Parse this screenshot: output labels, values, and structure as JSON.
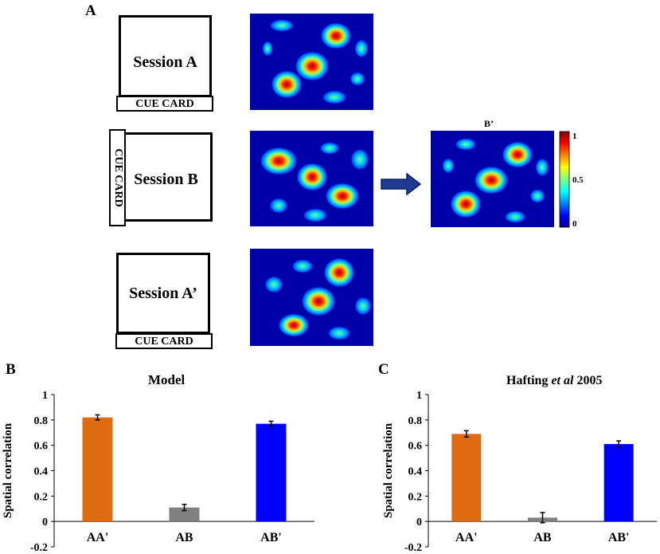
{
  "panel_a": {
    "letter": "A",
    "session_a_label": "Session A",
    "session_b_label": "Session B",
    "session_a2_label": "Session A’",
    "cue_card_label": "CUE CARD",
    "b_prime_label": "B’",
    "colorbar": {
      "ticks": [
        "1",
        "0.5",
        "0"
      ],
      "colormap": "jet"
    },
    "arrow_color": "#1f3a93"
  },
  "panel_b": {
    "letter": "B",
    "title": "Model"
  },
  "panel_c": {
    "letter": "C",
    "title_prefix": "Hafting ",
    "title_italic": "et al",
    "title_suffix": " 2005"
  },
  "chart_data": [
    {
      "type": "bar",
      "title": "Model",
      "ylabel": "Spatial correlation",
      "categories": [
        "AA'",
        "AB",
        "AB'"
      ],
      "values": [
        0.82,
        0.11,
        0.77
      ],
      "errors": [
        0.02,
        0.025,
        0.02
      ],
      "colors": [
        "#e06c12",
        "#808080",
        "#0000ff"
      ],
      "ylim": [
        -0.2,
        1
      ],
      "yticks": [
        "-0.2",
        "0",
        "0.2",
        "0.4",
        "0.6",
        "0.8",
        "1"
      ],
      "grid": false
    },
    {
      "type": "bar",
      "title": "Hafting et al 2005",
      "ylabel": "Spatial correlation",
      "categories": [
        "AA'",
        "AB",
        "AB'"
      ],
      "values": [
        0.69,
        0.03,
        0.61
      ],
      "errors": [
        0.025,
        0.04,
        0.025
      ],
      "colors": [
        "#e06c12",
        "#808080",
        "#0000ff"
      ],
      "ylim": [
        -0.2,
        1
      ],
      "yticks": [
        "-0.2",
        "0",
        "0.2",
        "0.4",
        "0.6",
        "0.8",
        "1"
      ],
      "grid": false
    }
  ]
}
